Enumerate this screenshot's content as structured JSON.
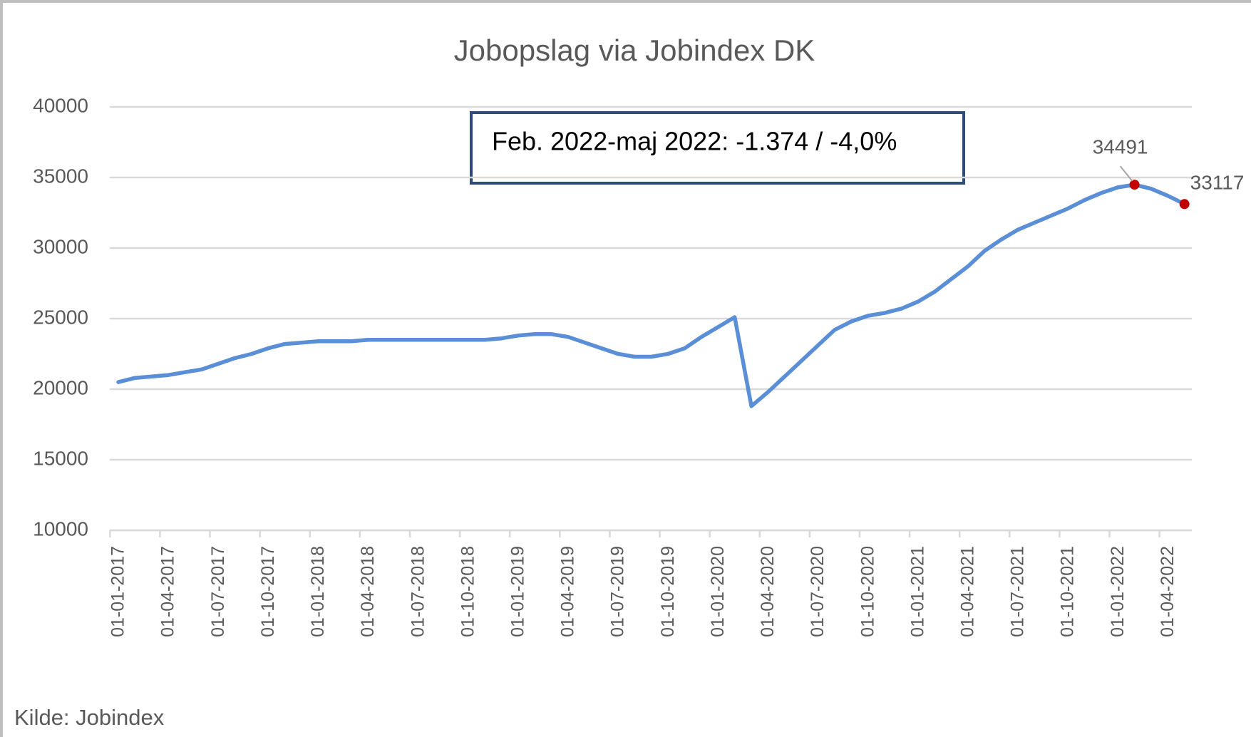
{
  "chart_data": {
    "type": "line",
    "title": "Jobopslag via Jobindex DK",
    "annotation": "Feb. 2022-maj 2022: -1.374 / -4,0%",
    "source": "Kilde: Jobindex",
    "categories": [
      "01-01-2017",
      null,
      null,
      "01-04-2017",
      null,
      null,
      "01-07-2017",
      null,
      null,
      "01-10-2017",
      null,
      null,
      "01-01-2018",
      null,
      null,
      "01-04-2018",
      null,
      null,
      "01-07-2018",
      null,
      null,
      "01-10-2018",
      null,
      null,
      "01-01-2019",
      null,
      null,
      "01-04-2019",
      null,
      null,
      "01-07-2019",
      null,
      null,
      "01-10-2019",
      null,
      null,
      "01-01-2020",
      null,
      null,
      "01-04-2020",
      null,
      null,
      "01-07-2020",
      null,
      null,
      "01-10-2020",
      null,
      null,
      "01-01-2021",
      null,
      null,
      "01-04-2021",
      null,
      null,
      "01-07-2021",
      null,
      null,
      "01-10-2021",
      null,
      null,
      "01-01-2022",
      null,
      null,
      "01-04-2022",
      null
    ],
    "series": [
      {
        "name": "Jobopslag",
        "color": "#5a8ed6",
        "values": [
          20500,
          20800,
          20900,
          21000,
          21200,
          21400,
          21800,
          22200,
          22500,
          22900,
          23200,
          23300,
          23400,
          23400,
          23400,
          23500,
          23500,
          23500,
          23500,
          23500,
          23500,
          23500,
          23500,
          23600,
          23800,
          23900,
          23900,
          23700,
          23300,
          22900,
          22500,
          22300,
          22300,
          22500,
          22900,
          23700,
          24400,
          25100,
          18800,
          19800,
          20900,
          22000,
          23100,
          24200,
          24800,
          25200,
          25400,
          25700,
          26200,
          26900,
          27800,
          28700,
          29800,
          30600,
          31300,
          31800,
          32300,
          32800,
          33400,
          33900,
          34300,
          34491,
          34200,
          33700,
          33117
        ]
      }
    ],
    "highlight": [
      61,
      64
    ],
    "highlight_color": "#c00000",
    "ylim": [
      10000,
      40000
    ],
    "yticks": [
      10000,
      15000,
      20000,
      25000,
      30000,
      35000,
      40000
    ],
    "grid": true
  }
}
